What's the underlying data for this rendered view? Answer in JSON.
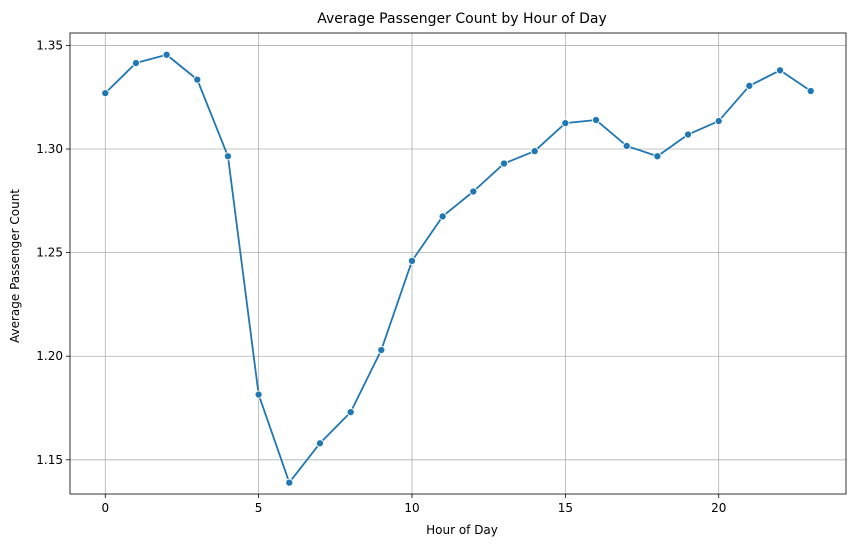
{
  "chart_data": {
    "type": "line",
    "title": "Average Passenger Count by Hour of Day",
    "xlabel": "Hour of Day",
    "ylabel": "Average Passenger Count",
    "xlim": [
      -1.15,
      24.15
    ],
    "ylim": [
      1.1335,
      1.356
    ],
    "xticks": [
      0,
      5,
      10,
      15,
      20
    ],
    "yticks": [
      1.15,
      1.2,
      1.25,
      1.3,
      1.35
    ],
    "xtick_labels": [
      "0",
      "5",
      "10",
      "15",
      "20"
    ],
    "ytick_labels": [
      "1.15",
      "1.20",
      "1.25",
      "1.30",
      "1.35"
    ],
    "grid": true,
    "marker": "circle",
    "line_color": "#1f77b4",
    "series": [
      {
        "x": [
          0,
          1,
          2,
          3,
          4,
          5,
          6,
          7,
          8,
          9,
          10,
          11,
          12,
          13,
          14,
          15,
          16,
          17,
          18,
          19,
          20,
          21,
          22,
          23
        ],
        "values": [
          1.327,
          1.3415,
          1.3455,
          1.3335,
          1.2965,
          1.1815,
          1.139,
          1.158,
          1.173,
          1.203,
          1.246,
          1.2675,
          1.2795,
          1.293,
          1.299,
          1.3125,
          1.314,
          1.3015,
          1.2965,
          1.307,
          1.3135,
          1.3305,
          1.338,
          1.328
        ]
      }
    ]
  }
}
